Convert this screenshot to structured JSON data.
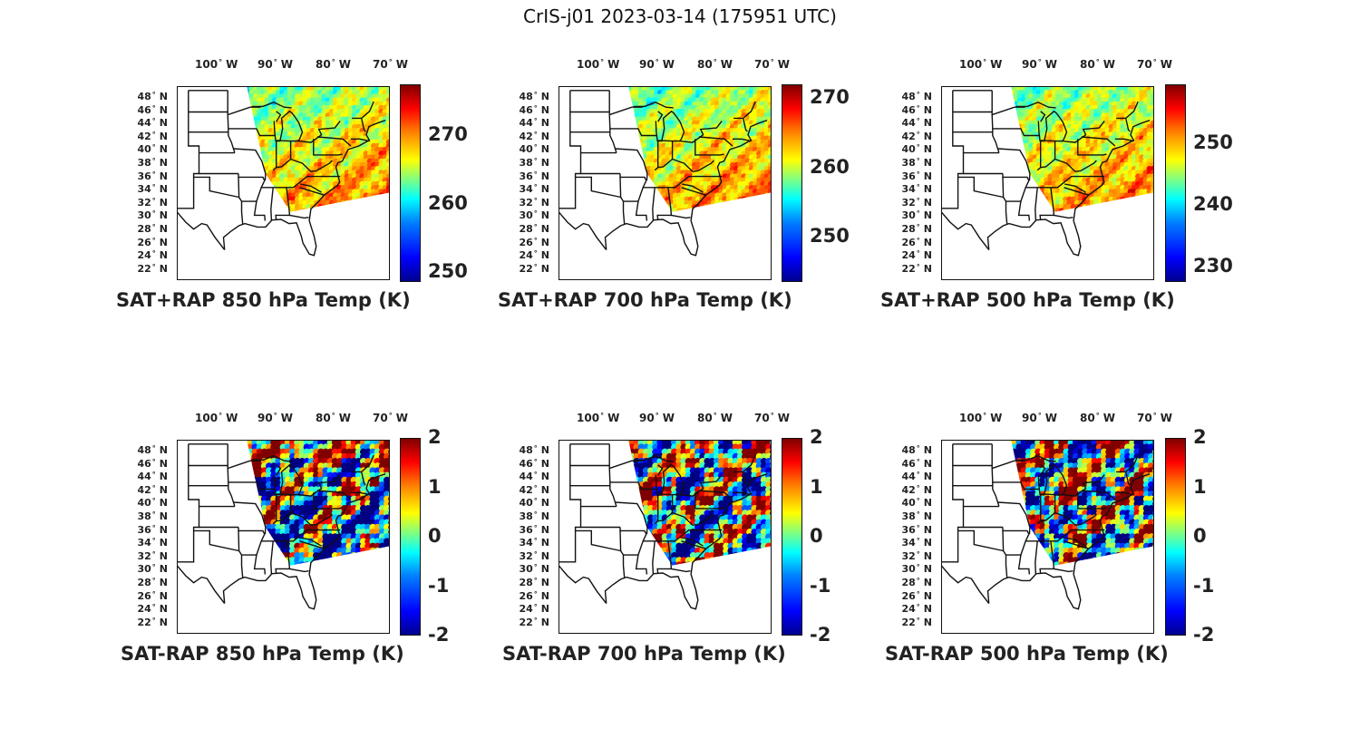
{
  "figure_title": "CrIS-j01 2023-03-14 (175951 UTC)",
  "lat_labels": [
    "48",
    "46",
    "44",
    "42",
    "40",
    "38",
    "36",
    "34",
    "32",
    "30",
    "28",
    "26",
    "24",
    "22"
  ],
  "lat_suffix": "N",
  "lon_labels": [
    "100",
    "90",
    "80",
    "70"
  ],
  "lon_suffix": "W",
  "panels": [
    {
      "title": "SAT+RAP 850 hPa Temp (K)",
      "kind": "temp",
      "layer": "850",
      "colorbar": {
        "ticks": [
          "270",
          "260",
          "250"
        ],
        "range": [
          248.5,
          277.5
        ]
      }
    },
    {
      "title": "SAT+RAP 700 hPa Temp (K)",
      "kind": "temp",
      "layer": "700",
      "colorbar": {
        "ticks": [
          "270",
          "260",
          "250"
        ],
        "range": [
          243.5,
          272
        ]
      }
    },
    {
      "title": "SAT+RAP 500 hPa Temp (K)",
      "kind": "temp",
      "layer": "500",
      "colorbar": {
        "ticks": [
          "250",
          "240",
          "230"
        ],
        "range": [
          227.5,
          259.5
        ]
      }
    },
    {
      "title": "SAT-RAP 850 hPa Temp (K)",
      "kind": "diff",
      "layer": "850",
      "colorbar": {
        "ticks": [
          "2",
          "1",
          "0",
          "-1",
          "-2"
        ],
        "range": [
          -2,
          2
        ]
      }
    },
    {
      "title": "SAT-RAP 700 hPa Temp (K)",
      "kind": "diff",
      "layer": "700",
      "colorbar": {
        "ticks": [
          "2",
          "1",
          "0",
          "-1",
          "-2"
        ],
        "range": [
          -2,
          2
        ]
      }
    },
    {
      "title": "SAT-RAP 500 hPa Temp (K)",
      "kind": "diff",
      "layer": "500",
      "colorbar": {
        "ticks": [
          "2",
          "1",
          "0",
          "-1",
          "-2"
        ],
        "range": [
          -2,
          2
        ]
      }
    }
  ],
  "colors": {
    "border": "#111111",
    "jet_low": "#00008f",
    "jet_high": "#800000"
  }
}
